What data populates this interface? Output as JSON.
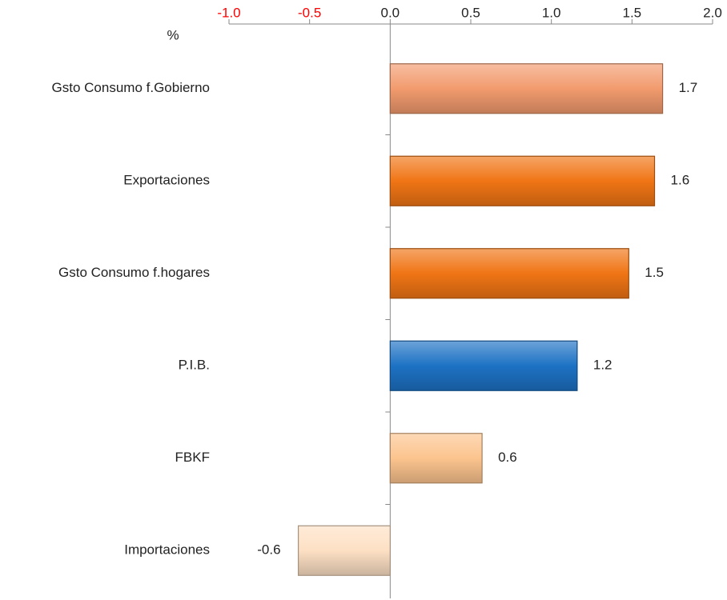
{
  "chart_data": {
    "type": "hbar",
    "unit_label": "%",
    "categories": [
      "Gsto Consumo f.Gobierno",
      "Exportaciones",
      "Gsto Consumo f.hogares",
      "P.I.B.",
      "FBKF",
      "Importaciones"
    ],
    "values": [
      1.69,
      1.64,
      1.48,
      1.16,
      0.57,
      -0.57
    ],
    "value_labels": [
      "1.7",
      "1.6",
      "1.5",
      "1.2",
      "0.6",
      "-0.6"
    ],
    "colors": [
      "#f29b6e",
      "#f07515",
      "#f07515",
      "#1d72c4",
      "#fcc48e",
      "#fde0c4"
    ],
    "xlim": [
      -1,
      2
    ],
    "xticks": [
      {
        "value": -1,
        "label": "-1.0"
      },
      -0.5,
      {
        "value": 0,
        "label": "0.0"
      },
      0.5,
      {
        "value": 1,
        "label": "1.0"
      },
      1.5,
      {
        "value": 2,
        "label": "2.0"
      }
    ],
    "negative_tick_color": "#ff0000"
  }
}
